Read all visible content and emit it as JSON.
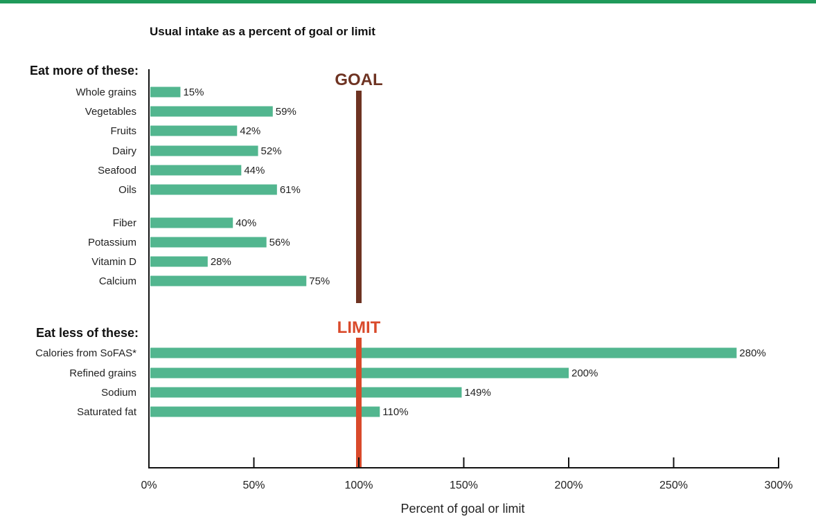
{
  "colors": {
    "top_bar": "#1f9a5a",
    "bar": "#52b68f",
    "goal": "#6e3322",
    "limit": "#d94a2b",
    "axis": "#111111"
  },
  "chart_data": {
    "type": "bar",
    "orientation": "horizontal",
    "title": "Usual intake as a percent of goal or limit",
    "xlabel": "Percent of goal or limit",
    "xlim": [
      0,
      300
    ],
    "xticks": [
      "0%",
      "50%",
      "100%",
      "150%",
      "200%",
      "250%",
      "300%"
    ],
    "groups": [
      {
        "label": "Eat more of these:",
        "reference": {
          "label": "GOAL",
          "value": 100
        },
        "categories": [
          "Whole grains",
          "Vegetables",
          "Fruits",
          "Dairy",
          "Seafood",
          "Oils",
          "Fiber",
          "Potassium",
          "Vitamin D",
          "Calcium"
        ],
        "values": [
          15,
          59,
          42,
          52,
          44,
          61,
          40,
          56,
          28,
          75
        ],
        "value_labels": [
          "15%",
          "59%",
          "42%",
          "52%",
          "44%",
          "61%",
          "40%",
          "56%",
          "28%",
          "75%"
        ]
      },
      {
        "label": "Eat less of these:",
        "reference": {
          "label": "LIMIT",
          "value": 100
        },
        "categories": [
          "Calories from SoFAS*",
          "Refined grains",
          "Sodium",
          "Saturated fat"
        ],
        "values": [
          280,
          200,
          149,
          110
        ],
        "value_labels": [
          "280%",
          "200%",
          "149%",
          "110%"
        ]
      }
    ],
    "grid": false,
    "legend": "none"
  }
}
